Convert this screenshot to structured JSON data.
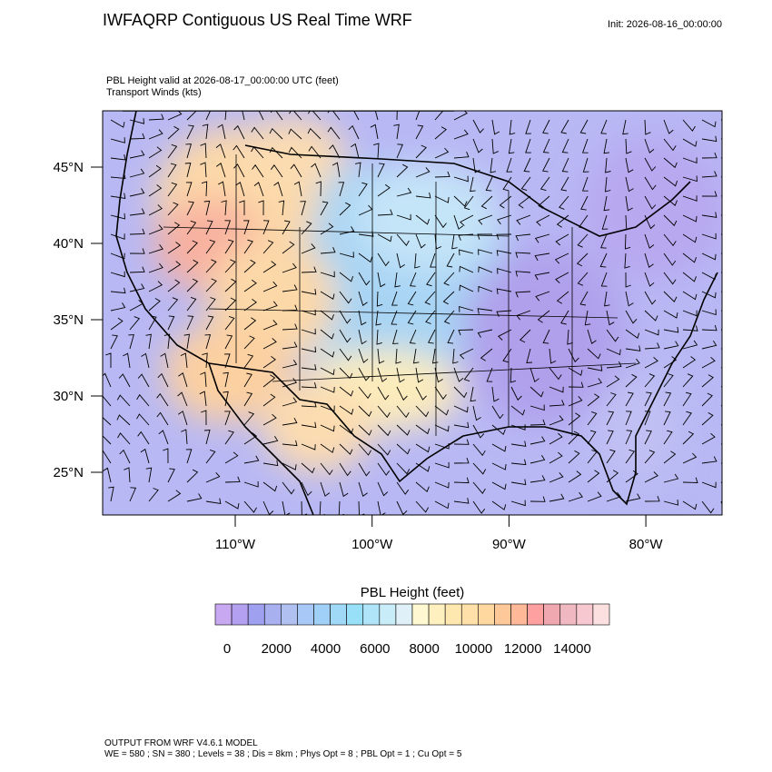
{
  "header": {
    "title": "IWFAQRP Contiguous US Real Time WRF",
    "init": "Init: 2026-08-16_00:00:00",
    "subtitle": [
      "PBL Height valid at 2026-08-17_00:00:00 UTC   (feet)",
      "Transport Winds   (kts)"
    ]
  },
  "map": {
    "lat_labels": [
      "45°N",
      "40°N",
      "35°N",
      "30°N",
      "25°N"
    ],
    "lon_labels": [
      "110°W",
      "100°W",
      "90°W",
      "80°W"
    ]
  },
  "colorbar": {
    "title": "PBL Height  (feet)",
    "colors": [
      "#c8a8f0",
      "#b4a0f0",
      "#a0a0f0",
      "#a8b0f0",
      "#b0c0f0",
      "#a8c8f8",
      "#a0d0f8",
      "#a0d8f8",
      "#98e0f8",
      "#b0e4f8",
      "#c8ecf8",
      "#e0f0f8",
      "#fff8d0",
      "#fff0c0",
      "#ffe8b0",
      "#ffe0a8",
      "#ffd8a0",
      "#ffc898",
      "#ffb898",
      "#ffa0a0",
      "#f0a8b0",
      "#f0b8c0",
      "#f8c8d0",
      "#fce0e0"
    ],
    "ticks": [
      0,
      2000,
      4000,
      6000,
      8000,
      10000,
      12000,
      14000
    ]
  },
  "footer": [
    "OUTPUT FROM WRF V4.6.1 MODEL",
    "WE = 580 ; SN = 380 ; Levels = 38 ; Dis = 8km ; Phys Opt = 8 ; PBL Opt = 1 ; Cu Opt = 5"
  ]
}
